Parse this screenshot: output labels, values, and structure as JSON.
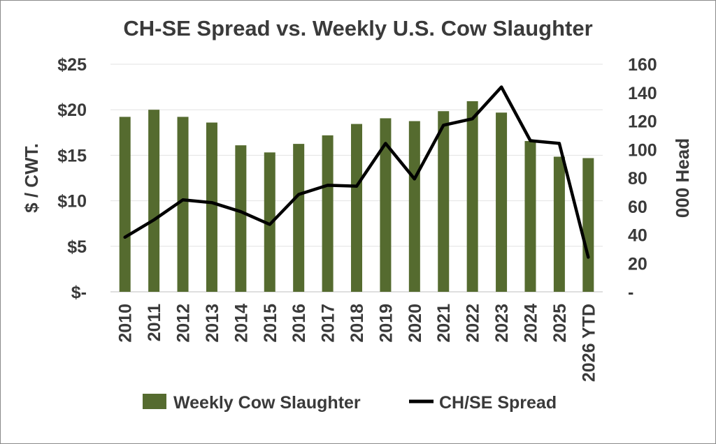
{
  "chart_data": {
    "type": "bar",
    "title": "CH-SE Spread vs. Weekly U.S. Cow Slaughter",
    "categories": [
      "2010",
      "2011",
      "2012",
      "2013",
      "2014",
      "2015",
      "2016",
      "2017",
      "2018",
      "2019",
      "2020",
      "2021",
      "2022",
      "2023",
      "2024",
      "2025",
      "2026 YTD"
    ],
    "ylabel_left": "$ / CWT.",
    "ylabel_right": "000 Head",
    "ylim_left": [
      0,
      25
    ],
    "ylim_right": [
      0,
      160
    ],
    "yticks_left": [
      "$-",
      "$5",
      "$10",
      "$15",
      "$20",
      "$25"
    ],
    "yticks_right": [
      "-",
      "20",
      "40",
      "60",
      "80",
      "100",
      "120",
      "140",
      "160"
    ],
    "grid": true,
    "legend_position": "bottom",
    "series": [
      {
        "name": "Weekly Cow Slaughter",
        "type": "bar",
        "axis": "right",
        "color": "#556b2f",
        "values": [
          123,
          128,
          123,
          119,
          103,
          98,
          104,
          110,
          118,
          122,
          120,
          127,
          134,
          126,
          106,
          95,
          94
        ]
      },
      {
        "name": "CH/SE Spread",
        "type": "line",
        "axis": "left",
        "color": "#000000",
        "values": [
          6.0,
          7.9,
          10.1,
          9.8,
          8.8,
          7.4,
          10.7,
          11.7,
          11.6,
          16.3,
          12.4,
          18.3,
          19.0,
          22.5,
          16.6,
          16.3,
          3.8
        ]
      }
    ]
  }
}
